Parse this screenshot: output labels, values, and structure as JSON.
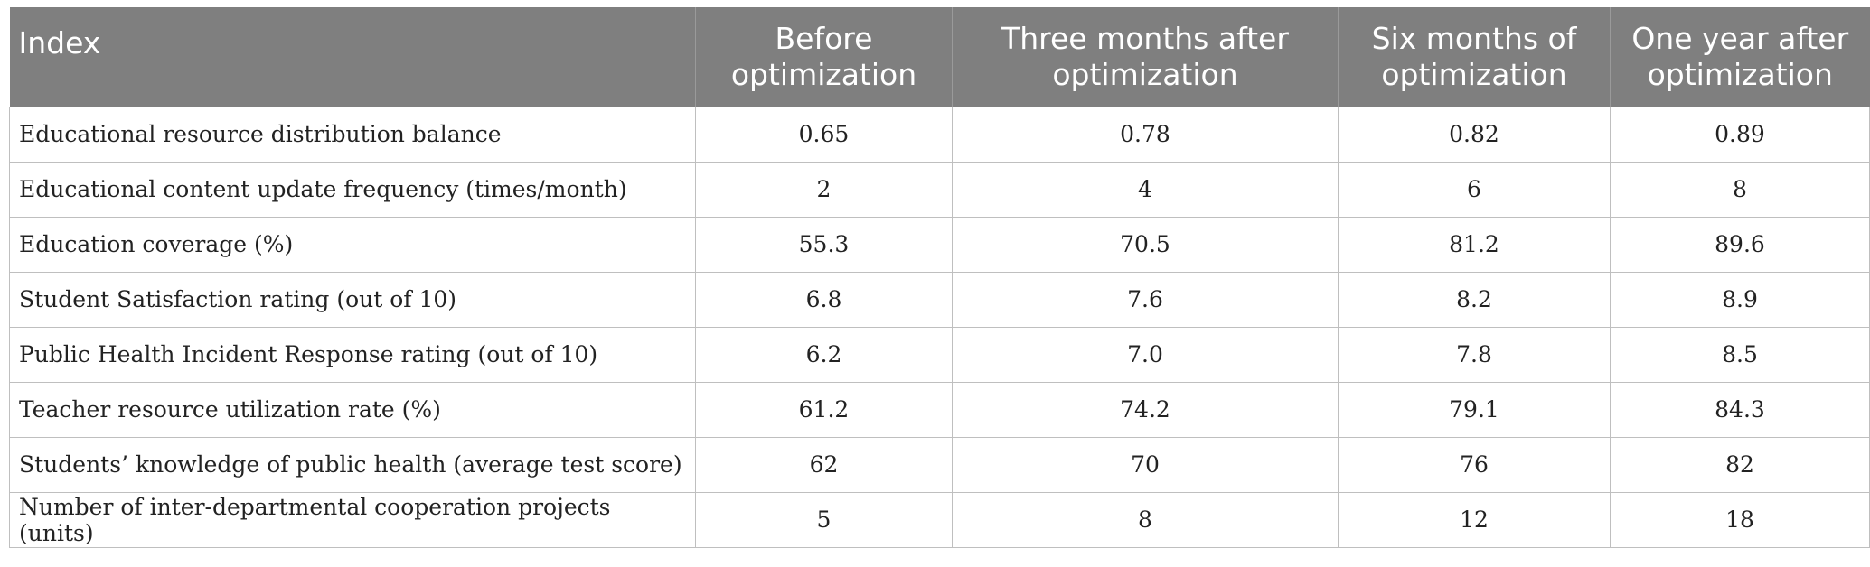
{
  "table": {
    "headers": [
      "Index",
      [
        "Before",
        "optimization"
      ],
      [
        "Three months after",
        "optimization"
      ],
      [
        "Six months of",
        "optimization"
      ],
      [
        "One year after",
        "optimization"
      ]
    ],
    "rows": [
      [
        "Educational resource distribution balance",
        "0.65",
        "0.78",
        "0.82",
        "0.89"
      ],
      [
        "Educational content update frequency (times/month)",
        "2",
        "4",
        "6",
        "8"
      ],
      [
        "Education coverage (%)",
        "55.3",
        "70.5",
        "81.2",
        "89.6"
      ],
      [
        "Student Satisfaction rating (out of 10)",
        "6.8",
        "7.6",
        "8.2",
        "8.9"
      ],
      [
        "Public Health Incident Response rating (out of 10)",
        "6.2",
        "7.0",
        "7.8",
        "8.5"
      ],
      [
        "Teacher resource utilization rate (%)",
        "61.2",
        "74.2",
        "79.1",
        "84.3"
      ],
      [
        "Students’ knowledge of public health (average test score)",
        "62",
        "70",
        "76",
        "82"
      ],
      [
        "Number of inter-departmental cooperation projects (units)",
        "5",
        "8",
        "12",
        "18"
      ]
    ]
  }
}
